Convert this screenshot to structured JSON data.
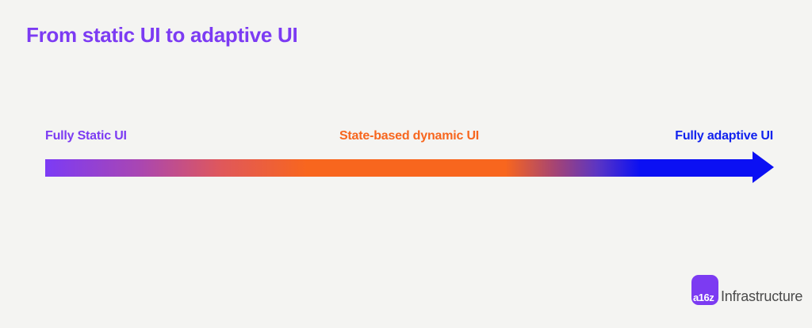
{
  "title": "From static UI to adaptive UI",
  "spectrum": {
    "stages": [
      {
        "label": "Fully Static UI",
        "color": "#7C3BF3",
        "align": "left"
      },
      {
        "label": "State-based dynamic UI",
        "color": "#F7661E",
        "align": "center"
      },
      {
        "label": "Fully adaptive UI",
        "color": "#1122EE",
        "align": "right"
      }
    ],
    "arrow": {
      "direction": "right",
      "gradient_stops": [
        "#7C3BF5",
        "#A846B4",
        "#F8661E",
        "#F8661E",
        "#5B35C4",
        "#0B10F3"
      ]
    }
  },
  "footer": {
    "logo_badge": "a16z",
    "logo_wordmark": "Infrastructure",
    "badge_color": "#7C3BF2"
  },
  "colors": {
    "background": "#F4F4F2",
    "title": "#7C3BF3"
  }
}
